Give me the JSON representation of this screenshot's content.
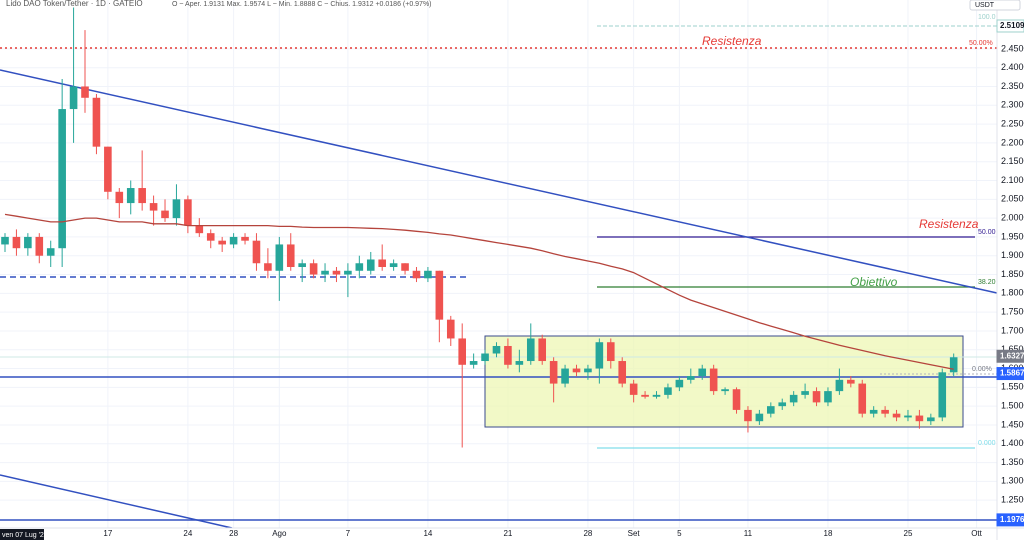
{
  "chart_data": {
    "type": "candlestick",
    "title": "Lido DAO Token/Tether · 1D · GATEIO",
    "subtitle": "O ~ Aper. 1.9131  Max. 1.9574  L ~ Min. 1.8888  C ~ Chius. 1.9312  +0.0186 (+0.97%)",
    "currency": "USDT",
    "crosshair_date": "ven 07 Lug '23",
    "up_color": "#26a69a",
    "down_color": "#ef5350",
    "grid": true,
    "categories": [
      null,
      null,
      null,
      null,
      null,
      null,
      null,
      null,
      null,
      "17",
      null,
      null,
      null,
      null,
      null,
      null,
      "24",
      null,
      null,
      null,
      "28",
      null,
      null,
      null,
      "Ago",
      null,
      null,
      null,
      null,
      null,
      "7",
      null,
      null,
      null,
      null,
      null,
      null,
      "14",
      null,
      null,
      null,
      null,
      null,
      null,
      "21",
      null,
      null,
      null,
      null,
      null,
      null,
      "28",
      null,
      null,
      null,
      "Set",
      null,
      null,
      null,
      "5",
      null,
      null,
      null,
      null,
      null,
      "11",
      null,
      null,
      null,
      null,
      null,
      null,
      "18",
      null,
      null,
      null,
      null,
      null,
      null,
      "25",
      null,
      null,
      null,
      null,
      null,
      "Ott"
    ],
    "open": [
      1.93,
      1.95,
      1.92,
      1.95,
      1.9,
      1.92,
      2.29,
      2.35,
      2.32,
      2.19,
      2.07,
      2.04,
      2.08,
      2.04,
      2.02,
      2.0,
      2.05,
      1.98,
      1.96,
      1.94,
      1.93,
      1.95,
      1.94,
      1.88,
      1.86,
      1.93,
      1.87,
      1.88,
      1.85,
      1.86,
      1.85,
      1.86,
      1.86,
      1.89,
      1.87,
      1.88,
      1.86,
      1.84,
      1.86,
      1.73,
      1.68,
      1.61,
      1.62,
      1.64,
      1.66,
      1.61,
      1.62,
      1.68,
      1.62,
      1.56,
      1.6,
      1.59,
      1.6,
      1.67,
      1.62,
      1.56,
      1.53,
      1.525,
      1.53,
      1.55,
      1.57,
      1.58,
      1.6,
      1.54,
      1.545,
      1.49,
      1.46,
      1.48,
      1.5,
      1.51,
      1.53,
      1.54,
      1.51,
      1.54,
      1.57,
      1.56,
      1.48,
      1.49,
      1.48,
      1.47,
      1.475,
      1.46,
      1.47,
      1.59,
      null,
      null
    ],
    "high": [
      1.96,
      1.97,
      1.96,
      1.96,
      1.94,
      2.37,
      2.56,
      2.5,
      2.33,
      2.19,
      2.08,
      2.1,
      2.18,
      2.06,
      2.05,
      2.09,
      2.06,
      2.0,
      1.97,
      1.95,
      1.96,
      1.96,
      1.96,
      1.92,
      1.95,
      1.96,
      1.89,
      1.89,
      1.88,
      1.87,
      1.88,
      1.9,
      1.91,
      1.93,
      1.89,
      1.88,
      1.87,
      1.87,
      1.86,
      1.74,
      1.72,
      1.64,
      1.65,
      1.67,
      1.68,
      1.65,
      1.72,
      1.69,
      1.63,
      1.61,
      1.61,
      1.61,
      1.68,
      1.68,
      1.63,
      1.57,
      1.54,
      1.54,
      1.56,
      1.58,
      1.6,
      1.61,
      1.61,
      1.55,
      1.55,
      1.5,
      1.49,
      1.51,
      1.52,
      1.54,
      1.56,
      1.55,
      1.55,
      1.6,
      1.58,
      1.57,
      1.5,
      1.5,
      1.49,
      1.49,
      1.49,
      1.48,
      1.6,
      1.64,
      null,
      null
    ],
    "low": [
      1.91,
      1.9,
      1.9,
      1.88,
      1.87,
      1.87,
      2.2,
      2.28,
      2.17,
      2.05,
      2.0,
      2.01,
      2.02,
      1.98,
      1.99,
      1.98,
      1.96,
      1.95,
      1.92,
      1.91,
      1.92,
      1.93,
      1.86,
      1.84,
      1.78,
      1.86,
      1.83,
      1.84,
      1.83,
      1.83,
      1.79,
      1.84,
      1.85,
      1.86,
      1.86,
      1.85,
      1.83,
      1.83,
      1.67,
      1.66,
      1.39,
      1.6,
      1.61,
      1.63,
      1.6,
      1.59,
      1.61,
      1.61,
      1.51,
      1.55,
      1.58,
      1.57,
      1.56,
      1.6,
      1.55,
      1.51,
      1.52,
      1.52,
      1.52,
      1.54,
      1.56,
      1.57,
      1.53,
      1.53,
      1.48,
      1.43,
      1.45,
      1.47,
      1.49,
      1.5,
      1.52,
      1.5,
      1.5,
      1.53,
      1.55,
      1.47,
      1.47,
      1.47,
      1.46,
      1.46,
      1.44,
      1.45,
      1.46,
      1.58,
      null,
      null
    ],
    "close": [
      1.95,
      1.92,
      1.95,
      1.9,
      1.92,
      2.29,
      2.35,
      2.32,
      2.19,
      2.07,
      2.04,
      2.08,
      2.04,
      2.02,
      2.0,
      2.05,
      1.98,
      1.96,
      1.94,
      1.93,
      1.95,
      1.94,
      1.88,
      1.86,
      1.93,
      1.87,
      1.88,
      1.85,
      1.86,
      1.85,
      1.86,
      1.88,
      1.89,
      1.87,
      1.88,
      1.86,
      1.84,
      1.86,
      1.73,
      1.68,
      1.61,
      1.62,
      1.64,
      1.66,
      1.61,
      1.62,
      1.68,
      1.62,
      1.56,
      1.6,
      1.59,
      1.6,
      1.67,
      1.62,
      1.56,
      1.53,
      1.525,
      1.53,
      1.55,
      1.57,
      1.58,
      1.6,
      1.54,
      1.545,
      1.49,
      1.46,
      1.48,
      1.5,
      1.51,
      1.53,
      1.54,
      1.51,
      1.54,
      1.57,
      1.56,
      1.48,
      1.49,
      1.48,
      1.47,
      1.475,
      1.46,
      1.47,
      1.59,
      1.63,
      null,
      null
    ],
    "moving_average": {
      "color": "#b5443c",
      "values": [
        2.01,
        2.005,
        2.0,
        1.995,
        1.99,
        1.99,
        1.995,
        2.0,
        2.0,
        1.995,
        1.99,
        1.99,
        1.99,
        1.985,
        1.985,
        1.985,
        1.98,
        1.98,
        1.98,
        1.98,
        1.98,
        1.98,
        1.98,
        1.98,
        1.978,
        1.978,
        1.976,
        1.975,
        1.975,
        1.975,
        1.975,
        1.974,
        1.973,
        1.972,
        1.97,
        1.968,
        1.965,
        1.962,
        1.958,
        1.955,
        1.95,
        1.945,
        1.94,
        1.935,
        1.93,
        1.925,
        1.92,
        1.913,
        1.905,
        1.898,
        1.892,
        1.886,
        1.88,
        1.872,
        1.865,
        1.855,
        1.84,
        1.825,
        1.81,
        1.795,
        1.782,
        1.772,
        1.762,
        1.752,
        1.742,
        1.732,
        1.722,
        1.713,
        1.704,
        1.695,
        1.686,
        1.678,
        1.67,
        1.662,
        1.655,
        1.648,
        1.641,
        1.634,
        1.628,
        1.622,
        1.616,
        1.61,
        1.604,
        1.598,
        null,
        null
      ]
    },
    "ylim": [
      1.176,
      2.58
    ],
    "yticks": [
      {
        "value": 1.25,
        "label": "1.2500"
      },
      {
        "value": 1.3,
        "label": "1.3000"
      },
      {
        "value": 1.35,
        "label": "1.3500"
      },
      {
        "value": 1.4,
        "label": "1.4000"
      },
      {
        "value": 1.45,
        "label": "1.4500"
      },
      {
        "value": 1.5,
        "label": "1.5000"
      },
      {
        "value": 1.55,
        "label": "1.5500"
      },
      {
        "value": 1.6,
        "label": "1.6000"
      },
      {
        "value": 1.65,
        "label": "1.6500"
      },
      {
        "value": 1.7,
        "label": "1.7000"
      },
      {
        "value": 1.75,
        "label": "1.7500"
      },
      {
        "value": 1.8,
        "label": "1.8000"
      },
      {
        "value": 1.85,
        "label": "1.8500"
      },
      {
        "value": 1.9,
        "label": "1.9000"
      },
      {
        "value": 1.95,
        "label": "1.9500"
      },
      {
        "value": 2.0,
        "label": "2.0000"
      },
      {
        "value": 2.05,
        "label": "2.0500"
      },
      {
        "value": 2.1,
        "label": "2.1000"
      },
      {
        "value": 2.15,
        "label": "2.1500"
      },
      {
        "value": 2.2,
        "label": "2.2000"
      },
      {
        "value": 2.25,
        "label": "2.2500"
      },
      {
        "value": 2.3,
        "label": "2.3000"
      },
      {
        "value": 2.35,
        "label": "2.3500"
      },
      {
        "value": 2.4,
        "label": "2.4000"
      },
      {
        "value": 2.45,
        "label": "2.4500"
      }
    ],
    "price_tags": [
      {
        "value": 2.5109,
        "color": "#ffffff",
        "text_color": "#131722"
      },
      {
        "value": 1.6327,
        "color": "#787b86",
        "text_color": "#ffffff"
      },
      {
        "value": 1.5867,
        "color": "#2962ff",
        "text_color": "#ffffff"
      },
      {
        "value": 1.1976,
        "color": "#2962ff",
        "text_color": "#ffffff"
      }
    ],
    "annotations": [
      "Resistenza",
      "Resistenza",
      "Obiettivo",
      "100.0",
      "50.00%",
      "50.00",
      "38.20",
      "0.00%",
      "0.000"
    ]
  }
}
